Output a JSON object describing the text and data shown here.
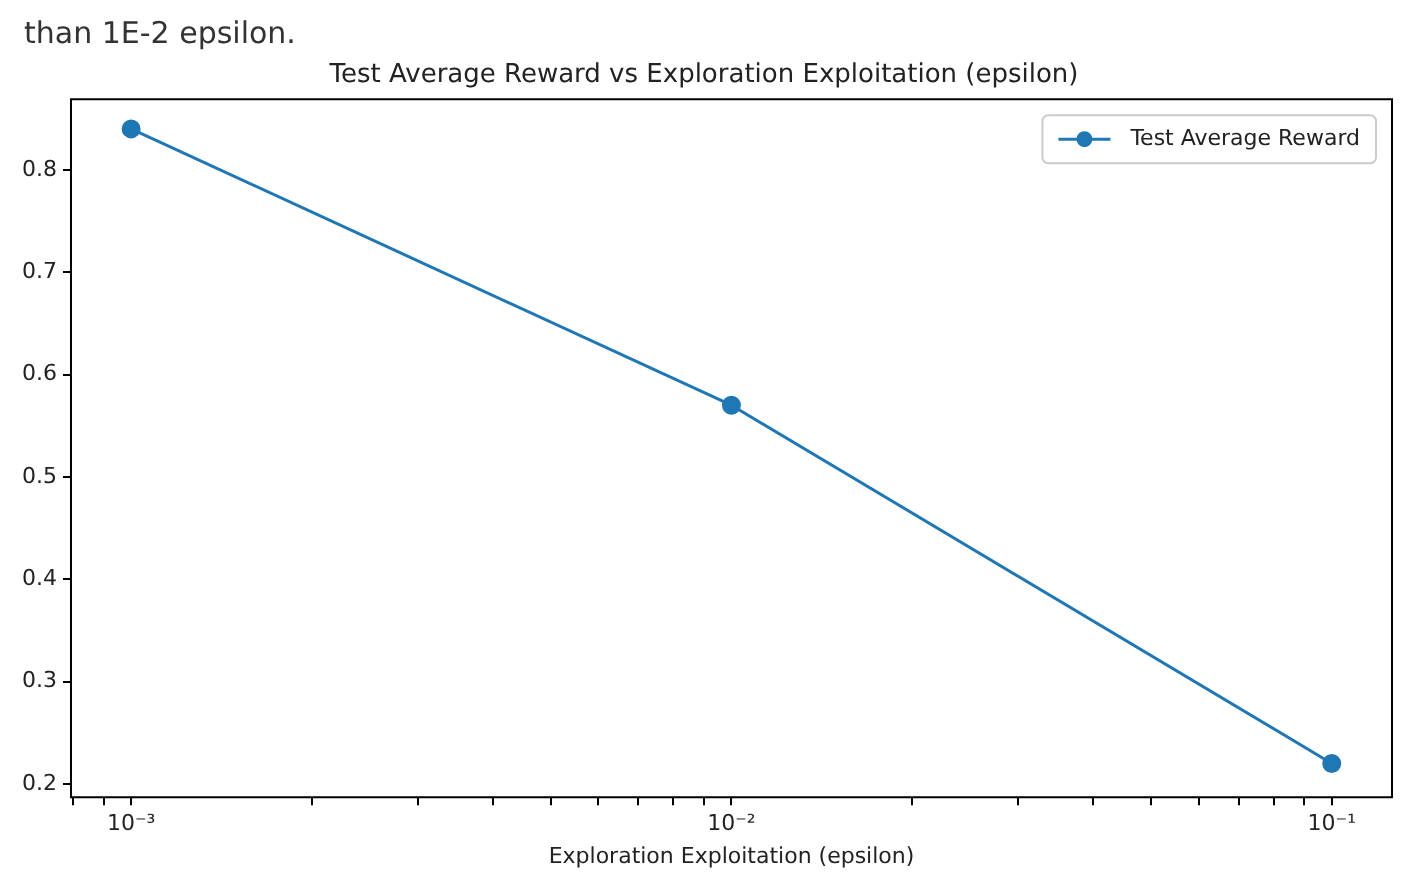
{
  "chart_data": {
    "type": "line",
    "title": "Test Average Reward vs Exploration Exploitation (epsilon)",
    "xlabel": "Exploration Exploitation (epsilon)",
    "annotations": [
      "than 1E-2 epsilon."
    ],
    "x": [
      0.001,
      0.01,
      0.1
    ],
    "series": [
      {
        "name": "Test Average Reward",
        "color": "#1f77b4",
        "values": [
          0.84,
          0.57,
          0.22
        ]
      }
    ],
    "log": "x",
    "xlim": [
      0.000794,
      0.126
    ],
    "xticks": [
      {
        "value": 0.0008,
        "label": null
      },
      {
        "value": 0.0009,
        "label": null
      },
      {
        "value": 0.001,
        "label": "10⁻³"
      },
      {
        "value": 0.002,
        "label": null
      },
      {
        "value": 0.003,
        "label": null
      },
      {
        "value": 0.004,
        "label": null
      },
      {
        "value": 0.005,
        "label": null
      },
      {
        "value": 0.006,
        "label": null
      },
      {
        "value": 0.007,
        "label": null
      },
      {
        "value": 0.008,
        "label": null
      },
      {
        "value": 0.009,
        "label": null
      },
      {
        "value": 0.01,
        "label": "10⁻²"
      },
      {
        "value": 0.02,
        "label": null
      },
      {
        "value": 0.03,
        "label": null
      },
      {
        "value": 0.04,
        "label": null
      },
      {
        "value": 0.05,
        "label": null
      },
      {
        "value": 0.06,
        "label": null
      },
      {
        "value": 0.07,
        "label": null
      },
      {
        "value": 0.08,
        "label": null
      },
      {
        "value": 0.09,
        "label": null
      },
      {
        "value": 0.1,
        "label": "10⁻¹"
      }
    ],
    "ylim": [
      0.187,
      0.869
    ],
    "yticks": [
      0.2,
      0.3,
      0.4,
      0.5,
      0.6,
      0.7,
      0.8
    ],
    "grid": false,
    "legend": "top right",
    "marker": "circle",
    "line_style": "solid"
  }
}
